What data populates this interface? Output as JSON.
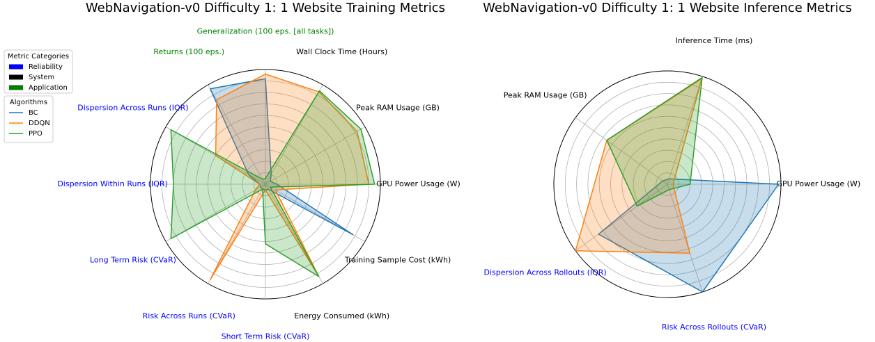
{
  "chart_data": [
    {
      "type": "radar",
      "title": "WebNavigation-v0 Difficulty 1: 1 Website Training Metrics",
      "categories": [
        "GPU Power Usage (W)",
        "Peak RAM Usage (GB)",
        "Wall Clock Time (Hours)",
        "Generalization (100 eps. [all tasks])",
        "Returns (100 eps.)",
        "Dispersion Across Runs (IQR)",
        "Dispersion Within Runs (IQR)",
        "Long Term Risk (CVaR)",
        "Risk Across Runs (CVaR)",
        "Short Term Risk (CVaR)",
        "Energy Consumed (kWh)",
        "Training Sample Cost (kWh)"
      ],
      "category_groups": [
        "System",
        "System",
        "System",
        "Application",
        "Application",
        "Reliability",
        "Reliability",
        "Reliability",
        "Reliability",
        "Reliability",
        "System",
        "System"
      ],
      "rlim": [
        0,
        1
      ],
      "rticks": [
        0.1,
        0.2,
        0.3,
        0.4,
        0.5,
        0.6,
        0.7,
        0.8,
        0.9,
        1.0
      ],
      "metric_legend": {
        "title": "Metric Categories",
        "items": [
          {
            "name": "Reliability",
            "color": "#0000ff"
          },
          {
            "name": "System",
            "color": "#000000"
          },
          {
            "name": "Application",
            "color": "#008000"
          }
        ]
      },
      "legend_title": "Algorithms",
      "series": [
        {
          "name": "BC",
          "color": "#1f77b4",
          "values": [
            0.1,
            0.05,
            0.1,
            0.92,
            0.96,
            0.17,
            0.05,
            0.05,
            0.05,
            0.05,
            0.05,
            0.88
          ]
        },
        {
          "name": "DDQN",
          "color": "#ff7f0e",
          "values": [
            0.9,
            0.92,
            0.93,
            0.96,
            0.85,
            0.5,
            0.05,
            0.1,
            0.96,
            0.05,
            0.93,
            0.1
          ]
        },
        {
          "name": "PPO",
          "color": "#2ca02c",
          "values": [
            0.95,
            0.96,
            0.94,
            0.05,
            0.05,
            0.95,
            0.8,
            0.95,
            0.05,
            0.52,
            0.93,
            0.05
          ]
        }
      ]
    },
    {
      "type": "radar",
      "title": "WebNavigation-v0 Difficulty 1: 1 Website Inference Metrics",
      "categories": [
        "GPU Power Usage (W)",
        "Inference Time (ms)",
        "Peak RAM Usage (GB)",
        "Dispersion Across Rollouts (IQR)",
        "Risk Across Rollouts (CVaR)"
      ],
      "category_groups": [
        "System",
        "System",
        "System",
        "Reliability",
        "Reliability"
      ],
      "rlim": [
        0,
        1
      ],
      "rticks": [
        0.1,
        0.2,
        0.3,
        0.4,
        0.5,
        0.6,
        0.7,
        0.8,
        0.9,
        1.0
      ],
      "series": [
        {
          "name": "BC",
          "color": "#1f77b4",
          "values": [
            0.98,
            0.05,
            0.05,
            0.75,
            1.0
          ]
        },
        {
          "name": "DDQN",
          "color": "#ff7f0e",
          "values": [
            0.05,
            0.98,
            0.66,
            1.0,
            0.64
          ]
        },
        {
          "name": "PPO",
          "color": "#2ca02c",
          "values": [
            0.2,
            0.99,
            0.66,
            0.33,
            0.05
          ]
        }
      ]
    }
  ]
}
